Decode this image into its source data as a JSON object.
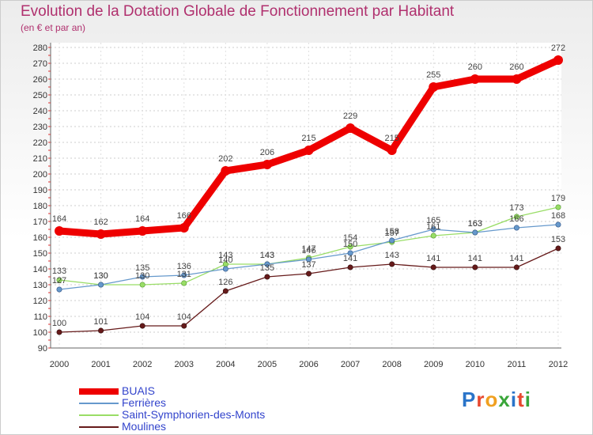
{
  "title": "Evolution de la Dotation Globale de Fonctionnement par Habitant",
  "subtitle": "(en € et par an)",
  "brand": "Proxiti",
  "brand_colors": [
    "#2a74c9",
    "#e8482f",
    "#f0a020",
    "#3aa63a",
    "#2a74c9",
    "#e8482f",
    "#3aa63a"
  ],
  "chart_data": {
    "type": "line",
    "title": "Evolution de la Dotation Globale de Fonctionnement par Habitant",
    "subtitle": "(en € et par an)",
    "xlabel": "",
    "ylabel": "",
    "ylim": [
      90,
      280
    ],
    "ytick_step": 10,
    "grid": true,
    "legend_position": "bottom-left",
    "x": [
      "2000",
      "2001",
      "2002",
      "2003",
      "2004",
      "2005",
      "2006",
      "2007",
      "2008",
      "2009",
      "2010",
      "2011",
      "2012"
    ],
    "series": [
      {
        "name": "BUAIS",
        "color": "#ee0000",
        "weight": "heavy",
        "values": [
          164,
          162,
          164,
          166,
          202,
          206,
          215,
          229,
          215,
          255,
          260,
          260,
          272
        ]
      },
      {
        "name": "Ferrières",
        "color": "#6699cc",
        "weight": "thin",
        "values": [
          127,
          130,
          135,
          136,
          140,
          143,
          146,
          150,
          158,
          165,
          163,
          166,
          168
        ]
      },
      {
        "name": "Saint-Symphorien-des-Monts",
        "color": "#99dd66",
        "weight": "thin",
        "values": [
          133,
          130,
          130,
          131,
          143,
          143,
          147,
          154,
          157,
          161,
          163,
          173,
          179
        ]
      },
      {
        "name": "Moulines",
        "color": "#661a1a",
        "weight": "thin",
        "values": [
          100,
          101,
          104,
          104,
          126,
          135,
          137,
          141,
          143,
          141,
          141,
          141,
          153
        ]
      }
    ]
  }
}
